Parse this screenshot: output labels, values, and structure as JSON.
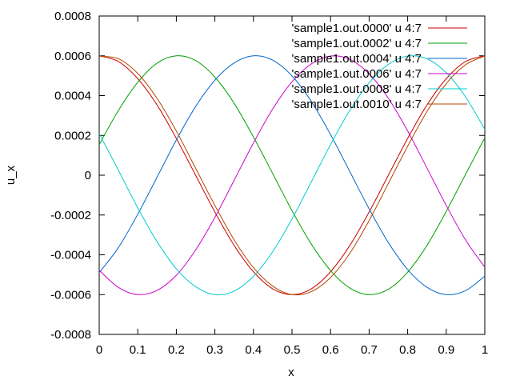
{
  "chart_data": {
    "type": "line",
    "title": "",
    "xlabel": "x",
    "ylabel": "u_x",
    "xlim": [
      0,
      1
    ],
    "ylim": [
      -0.0008,
      0.0008
    ],
    "xticks": [
      0,
      0.1,
      0.2,
      0.3,
      0.4,
      0.5,
      0.6,
      0.7,
      0.8,
      0.9,
      1
    ],
    "xtick_labels": [
      "0",
      "0.1",
      "0.2",
      "0.3",
      "0.4",
      "0.5",
      "0.6",
      "0.7",
      "0.8",
      "0.9",
      "1"
    ],
    "yticks": [
      -0.0008,
      -0.0006,
      -0.0004,
      -0.0002,
      0,
      0.0002,
      0.0004,
      0.0006,
      0.0008
    ],
    "ytick_labels": [
      "-0.0008",
      "-0.0006",
      "-0.0004",
      "-0.0002",
      "0",
      "0.0002",
      "0.0004",
      "0.0006",
      "0.0008"
    ],
    "grid": false,
    "legend_position": "top-right",
    "series": [
      {
        "name": "'sample1.out.0000' u 4:7",
        "color": "#cc0000",
        "x": [
          0,
          0.05,
          0.1,
          0.15,
          0.2,
          0.25,
          0.3,
          0.35,
          0.4,
          0.45,
          0.5,
          0.55,
          0.6,
          0.65,
          0.7,
          0.75,
          0.8,
          0.85,
          0.9,
          0.95,
          1
        ],
        "y": [
          0.0006,
          0.000571,
          0.000485,
          0.000353,
          0.000185,
          0,
          -0.000185,
          -0.000353,
          -0.000485,
          -0.000571,
          -0.0006,
          -0.000571,
          -0.000485,
          -0.000353,
          -0.000185,
          0,
          0.000185,
          0.000353,
          0.000485,
          0.000571,
          0.0006
        ]
      },
      {
        "name": "'sample1.out.0002' u 4:7",
        "color": "#00a000",
        "x": [
          0,
          0.05,
          0.1,
          0.15,
          0.2,
          0.25,
          0.3,
          0.35,
          0.4,
          0.45,
          0.5,
          0.55,
          0.6,
          0.65,
          0.7,
          0.75,
          0.8,
          0.85,
          0.9,
          0.95,
          1
        ],
        "y": [
          0.000154,
          0.000326,
          0.000467,
          0.000563,
          0.0006,
          0.000576,
          0.000493,
          0.000361,
          0.000192,
          8e-06,
          -0.000178,
          -0.000346,
          -0.000479,
          -0.000567,
          -0.0006,
          -0.000573,
          -0.000487,
          -0.000353,
          -0.000182,
          4e-06,
          0.000188
        ]
      },
      {
        "name": "'sample1.out.0004' u 4:7",
        "color": "#0066cc",
        "x": [
          0,
          0.05,
          0.1,
          0.15,
          0.2,
          0.25,
          0.3,
          0.35,
          0.4,
          0.45,
          0.5,
          0.55,
          0.6,
          0.65,
          0.7,
          0.75,
          0.8,
          0.85,
          0.9,
          0.95,
          1
        ],
        "y": [
          -0.00049,
          -0.000363,
          -0.000196,
          -1e-05,
          0.000177,
          0.000345,
          0.000477,
          0.000564,
          0.0006,
          0.000578,
          0.000499,
          0.000371,
          0.000204,
          1.8e-05,
          -0.000169,
          -0.000339,
          -0.000474,
          -0.000563,
          -0.0006,
          -0.00058,
          -0.000507
        ]
      },
      {
        "name": "'sample1.out.0006' u 4:7",
        "color": "#cc00cc",
        "x": [
          0,
          0.05,
          0.1,
          0.15,
          0.2,
          0.25,
          0.3,
          0.35,
          0.4,
          0.45,
          0.5,
          0.55,
          0.6,
          0.65,
          0.7,
          0.75,
          0.8,
          0.85,
          0.9,
          0.95,
          1
        ],
        "y": [
          -0.000478,
          -0.000564,
          -0.0006,
          -0.000579,
          -0.000503,
          -0.000376,
          -0.000212,
          -2.5e-05,
          0.000162,
          0.000333,
          0.000469,
          0.000559,
          0.000599,
          0.000582,
          0.000509,
          0.000386,
          0.000222,
          3.6e-05,
          -0.000152,
          -0.000325,
          -0.000462
        ]
      },
      {
        "name": "'sample1.out.0008' u 4:7",
        "color": "#00cccc",
        "x": [
          0,
          0.05,
          0.1,
          0.15,
          0.2,
          0.25,
          0.3,
          0.35,
          0.4,
          0.45,
          0.5,
          0.55,
          0.6,
          0.65,
          0.7,
          0.75,
          0.8,
          0.85,
          0.9,
          0.95,
          1
        ],
        "y": [
          0.000209,
          2.4e-05,
          -0.000164,
          -0.000334,
          -0.00047,
          -0.00056,
          -0.0006,
          -0.000582,
          -0.000508,
          -0.000384,
          -0.00022,
          -3.4e-05,
          0.000154,
          0.000326,
          0.000464,
          0.000557,
          0.000599,
          0.000585,
          0.000515,
          0.000394,
          0.00023
        ]
      },
      {
        "name": "'sample1.out.0010' u 4:7",
        "color": "#b34700",
        "x": [
          0,
          0.05,
          0.1,
          0.15,
          0.2,
          0.25,
          0.3,
          0.35,
          0.4,
          0.45,
          0.5,
          0.55,
          0.6,
          0.65,
          0.7,
          0.75,
          0.8,
          0.85,
          0.9,
          0.95,
          1
        ],
        "y": [
          0.000598,
          0.000585,
          0.000511,
          0.000386,
          0.000222,
          3.5e-05,
          -0.000152,
          -0.000325,
          -0.000464,
          -0.000557,
          -0.0006,
          -0.000585,
          -0.000514,
          -0.000392,
          -0.000228,
          -4.1e-05,
          0.000146,
          0.00032,
          0.00046,
          0.000555,
          0.000599
        ]
      }
    ]
  }
}
